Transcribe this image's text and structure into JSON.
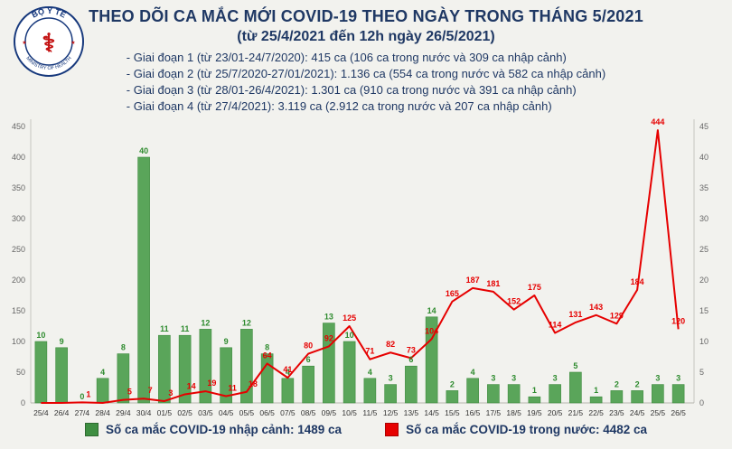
{
  "logo": {
    "org": "BỘ Y TẾ",
    "org_en": "MINISTRY OF HEALTH",
    "ring_color": "#16387c",
    "symbol_color": "#c41414"
  },
  "header": {
    "title": "THEO DÕI CA MẮC MỚI COVID-19 THEO NGÀY TRONG THÁNG 5/2021",
    "subtitle": "(từ 25/4/2021 đến 12h ngày 26/5/2021)",
    "bullets": [
      "- Giai đoạn 1 (từ 23/01-24/7/2020): 415 ca (106 ca trong nước và 309 ca nhập cảnh)",
      "- Giai đoạn 2 (từ 25/7/2020-27/01/2021): 1.136 ca (554 ca trong nước và 582 ca nhập cảnh)",
      "- Giai đoạn 3 (từ 28/01-26/4/2021): 1.301 ca (910 ca trong nước và 391 ca nhập cảnh)",
      "- Giai đoạn 4 (từ 27/4/2021): 3.119 ca (2.912 ca trong nước và 207 ca nhập cảnh)"
    ],
    "text_color": "#1f3864"
  },
  "chart_data": {
    "type": "bar+line",
    "title": "THEO DÕI CA MẮC MỚI COVID-19 THEO NGÀY TRONG THÁNG 5/2021",
    "categories": [
      "25/4",
      "26/4",
      "27/4",
      "28/4",
      "29/4",
      "30/4",
      "01/5",
      "02/5",
      "03/5",
      "04/5",
      "05/5",
      "06/5",
      "07/5",
      "08/5",
      "09/5",
      "10/5",
      "11/5",
      "12/5",
      "13/5",
      "14/5",
      "15/5",
      "16/5",
      "17/5",
      "18/5",
      "19/5",
      "20/5",
      "21/5",
      "22/5",
      "23/5",
      "24/5",
      "25/5",
      "26/5"
    ],
    "series": [
      {
        "name": "Số ca mắc COVID-19 nhập cảnh",
        "type": "bar",
        "axis": "right",
        "color": "#5aa55a",
        "label_color": "#2e8b2e",
        "values": [
          10,
          9,
          0,
          4,
          8,
          40,
          11,
          11,
          12,
          9,
          12,
          8,
          4,
          6,
          13,
          10,
          4,
          3,
          6,
          14,
          2,
          4,
          3,
          3,
          1,
          3,
          5,
          1,
          2,
          2,
          3,
          3
        ]
      },
      {
        "name": "Số ca mắc COVID-19 trong nước",
        "type": "line",
        "axis": "left",
        "color": "#e60000",
        "label_color": "#e60000",
        "values": [
          0,
          0,
          1,
          0,
          5,
          7,
          3,
          14,
          19,
          11,
          18,
          64,
          41,
          80,
          92,
          125,
          71,
          82,
          73,
          104,
          165,
          187,
          181,
          152,
          175,
          114,
          131,
          143,
          129,
          184,
          444,
          120
        ]
      }
    ],
    "left_axis": {
      "min": 0,
      "max": 450,
      "step": 50
    },
    "right_axis": {
      "min": 0,
      "max": 45,
      "step": 5
    },
    "grid": false,
    "legend_position": "bottom"
  },
  "legend": {
    "items": [
      {
        "label": "Số ca mắc COVID-19 nhập cảnh: 1489 ca",
        "color": "#3e8e41"
      },
      {
        "label": "Số ca mắc COVID-19 trong nước: 4482 ca",
        "color": "#e60000"
      }
    ]
  }
}
